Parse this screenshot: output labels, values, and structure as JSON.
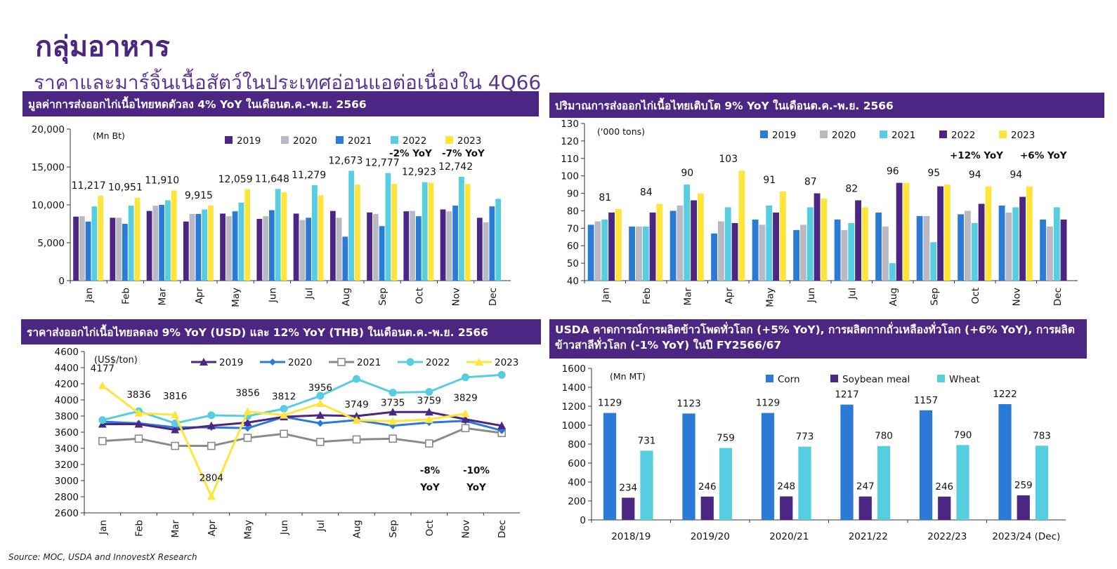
{
  "page": {
    "title": "กลุ่มอาหาร",
    "subtitle": "ราคาและมาร์จิ้นเนื้อสัตว์ในประเทศอ่อนแอต่อเนื่องใน 4Q66",
    "source": "Source: MOC, USDA and InnovestX Research"
  },
  "chart_data": [
    {
      "id": "export-value",
      "type": "bar",
      "title": "มูลค่าการส่งออกไก่เนื้อไทยหดตัวลง 4% YoY ในเดือนต.ค.-พ.ย. 2566",
      "unit": "(Mn Bt)",
      "categories": [
        "Jan",
        "Feb",
        "Mar",
        "Apr",
        "May",
        "Jun",
        "Jul",
        "Aug",
        "Sep",
        "Oct",
        "Nov",
        "Dec"
      ],
      "series": [
        {
          "name": "2019",
          "color": "#4b2683",
          "values": [
            8450,
            8300,
            9200,
            7800,
            8850,
            8150,
            8850,
            9200,
            9000,
            9150,
            9400,
            8300
          ]
        },
        {
          "name": "2020",
          "color": "#b9b9c6",
          "values": [
            8500,
            8300,
            9900,
            8800,
            8500,
            8500,
            8000,
            8300,
            8800,
            9200,
            9150,
            7700
          ]
        },
        {
          "name": "2021",
          "color": "#2b7bd6",
          "values": [
            7800,
            7500,
            10000,
            8800,
            9150,
            9300,
            8300,
            5800,
            7200,
            8500,
            9900,
            9800
          ]
        },
        {
          "name": "2022",
          "color": "#56cde0",
          "values": [
            9800,
            9900,
            10600,
            9400,
            10300,
            12100,
            12600,
            14500,
            14200,
            13000,
            13700,
            10800
          ]
        },
        {
          "name": "2023",
          "color": "#ffe53b",
          "values": [
            11217,
            10951,
            11910,
            9915,
            12059,
            11648,
            11279,
            12673,
            12777,
            12923,
            12742,
            null
          ]
        }
      ],
      "data_labels": [
        "11,217",
        "10,951",
        "11,910",
        "9,915",
        "12,059",
        "11,648",
        "11,279",
        "12,673",
        "12,777",
        "12,923",
        "12,742"
      ],
      "yticks": [
        "0",
        "5,000",
        "10,000",
        "15,000",
        "20,000"
      ],
      "ylim": [
        0,
        20000
      ],
      "annotations": [
        "-2% YoY",
        "-7% YoY"
      ],
      "legend": "top-right"
    },
    {
      "id": "export-volume",
      "type": "bar",
      "title": "ปริมาณการส่งออกไก่เนื้อไทยเติบโต 9% YoY ในเดือนต.ค.-พ.ย. 2566",
      "unit": "('000 tons)",
      "categories": [
        "Jan",
        "Feb",
        "Mar",
        "Apr",
        "May",
        "Jun",
        "Jul",
        "Aug",
        "Sep",
        "Oct",
        "Nov",
        "Dec"
      ],
      "series": [
        {
          "name": "2019",
          "color": "#2b7bd6",
          "values": [
            72,
            71,
            80,
            67,
            75,
            69,
            75,
            79,
            77,
            78,
            83,
            75
          ]
        },
        {
          "name": "2020",
          "color": "#b9b9c6",
          "values": [
            74,
            71,
            83,
            74,
            72,
            72,
            69,
            71,
            77,
            80,
            79,
            71
          ]
        },
        {
          "name": "2021",
          "color": "#56cde0",
          "values": [
            75,
            71,
            95,
            82,
            83,
            82,
            73,
            50,
            62,
            73,
            82,
            82
          ]
        },
        {
          "name": "2022",
          "color": "#4b2683",
          "values": [
            79,
            79,
            86,
            73,
            79,
            90,
            86,
            96,
            94,
            84,
            88,
            75
          ]
        },
        {
          "name": "2023",
          "color": "#ffe53b",
          "values": [
            81,
            84,
            90,
            103,
            91,
            87,
            82,
            96,
            95,
            94,
            94,
            null
          ]
        }
      ],
      "data_labels": [
        "81",
        "84",
        "90",
        "103",
        "91",
        "87",
        "82",
        "96",
        "95",
        "94",
        "94"
      ],
      "yticks": [
        "40",
        "50",
        "60",
        "70",
        "80",
        "90",
        "100",
        "110",
        "120",
        "130"
      ],
      "ylim": [
        40,
        130
      ],
      "annotations": [
        "+12% YoY",
        "+6% YoY"
      ],
      "legend": "top-right"
    },
    {
      "id": "export-price",
      "type": "line",
      "title": "ราคาส่งออกไก่เนื้อไทยลดลง 9% YoY (USD) และ 12% YoY (THB) ในเดือนต.ค.-พ.ย. 2566",
      "unit": "(US$/ton)",
      "categories": [
        "Jan",
        "Feb",
        "Mar",
        "Apr",
        "May",
        "Jun",
        "Jul",
        "Aug",
        "Sep",
        "Oct",
        "Nov",
        "Dec"
      ],
      "series": [
        {
          "name": "2019",
          "color": "#4b2683",
          "marker": "triangle",
          "values": [
            3700,
            3700,
            3630,
            3680,
            3720,
            3790,
            3810,
            3800,
            3850,
            3850,
            3760,
            3680
          ]
        },
        {
          "name": "2020",
          "color": "#2b7bd6",
          "marker": "diamond",
          "values": [
            3730,
            3710,
            3660,
            3660,
            3650,
            3790,
            3710,
            3750,
            3680,
            3720,
            3740,
            3620
          ]
        },
        {
          "name": "2021",
          "color": "#8a8a8a",
          "marker": "square",
          "values": [
            3490,
            3520,
            3430,
            3430,
            3530,
            3580,
            3480,
            3510,
            3520,
            3460,
            3650,
            3590
          ]
        },
        {
          "name": "2022",
          "color": "#56cde0",
          "marker": "circle",
          "values": [
            3750,
            3860,
            3710,
            3810,
            3800,
            3890,
            4050,
            4260,
            4090,
            4100,
            4280,
            4310
          ]
        },
        {
          "name": "2023",
          "color": "#ffe53b",
          "marker": "triangle",
          "values": [
            4177,
            3836,
            3816,
            2804,
            3856,
            3812,
            3956,
            3749,
            3735,
            3759,
            3829,
            null
          ]
        }
      ],
      "data_labels": [
        "4177",
        "3836",
        "3816",
        "2804",
        "3856",
        "3812",
        "3956",
        "3749",
        "3735",
        "3759",
        "3829"
      ],
      "yticks": [
        "2600",
        "2800",
        "3000",
        "3200",
        "3400",
        "3600",
        "3800",
        "4000",
        "4200",
        "4400",
        "4600"
      ],
      "ylim": [
        2600,
        4600
      ],
      "annotations": [
        "-8%",
        "YoY",
        "-10%",
        "YoY"
      ],
      "legend": "top"
    },
    {
      "id": "usda-production",
      "type": "bar",
      "title": "USDA คาดการณ์การผลิตข้าวโพดทั่วโลก (+5% YoY), การผลิตกากถั่วเหลืองทั่วโลก (+6% YoY), การผลิตข้าวสาลีทั่วโลก (-1% YoY) ในปี FY2566/67",
      "unit": "(Mn MT)",
      "categories": [
        "2018/19",
        "2019/20",
        "2020/21",
        "2021/22",
        "2022/23",
        "2023/24 (Dec)"
      ],
      "series": [
        {
          "name": "Corn",
          "color": "#2b7bd6",
          "values": [
            1129,
            1123,
            1129,
            1217,
            1157,
            1222
          ]
        },
        {
          "name": "Soybean meal",
          "color": "#4b2683",
          "values": [
            234,
            246,
            248,
            247,
            246,
            259
          ]
        },
        {
          "name": "Wheat",
          "color": "#56cde0",
          "values": [
            731,
            759,
            773,
            780,
            790,
            783
          ]
        }
      ],
      "yticks": [
        "0",
        "200",
        "400",
        "600",
        "800",
        "1000",
        "1200",
        "1400",
        "1600"
      ],
      "ylim": [
        0,
        1600
      ],
      "legend": "top"
    }
  ]
}
